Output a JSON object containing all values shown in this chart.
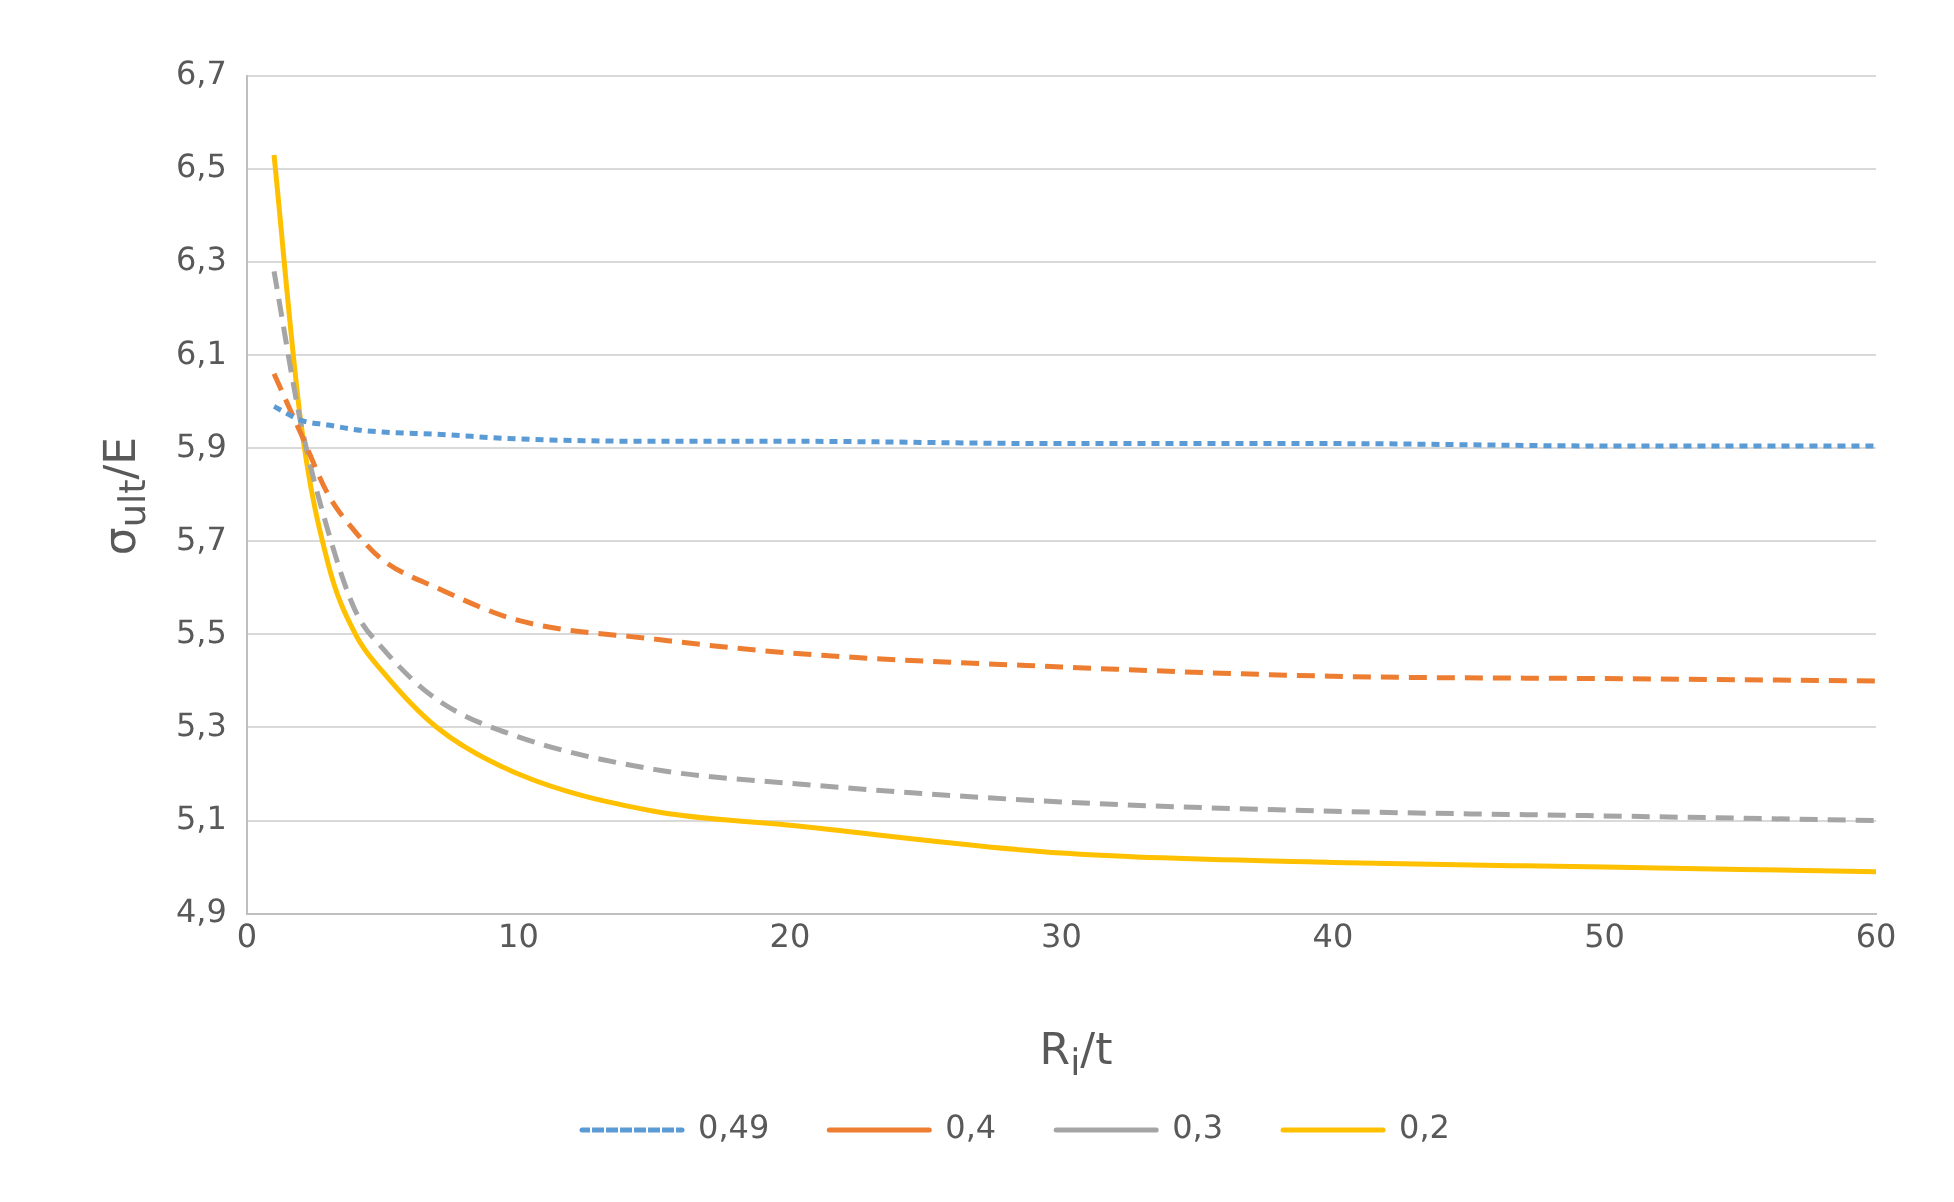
{
  "chart_data": {
    "type": "line",
    "xlabel": "R$_{i}$/t",
    "ylabel": "σ$_{ult}$/E",
    "x": [
      1,
      2,
      3,
      4,
      5,
      7,
      10,
      15,
      20,
      30,
      40,
      50,
      60
    ],
    "series": [
      {
        "name": "0,49",
        "color": "#5b9bd5",
        "line_style": "dotted",
        "values": [
          5.99,
          5.96,
          5.95,
          5.94,
          5.935,
          5.93,
          5.92,
          5.915,
          5.915,
          5.91,
          5.91,
          5.905,
          5.905
        ]
      },
      {
        "name": "0,4",
        "color": "#ed7d31",
        "line_style": "dashed",
        "values": [
          6.06,
          5.93,
          5.8,
          5.72,
          5.66,
          5.6,
          5.53,
          5.49,
          5.46,
          5.43,
          5.41,
          5.405,
          5.4
        ]
      },
      {
        "name": "0,3",
        "color": "#a5a5a5",
        "line_style": "dashed",
        "values": [
          6.28,
          5.95,
          5.72,
          5.55,
          5.47,
          5.36,
          5.28,
          5.21,
          5.18,
          5.14,
          5.12,
          5.11,
          5.1
        ]
      },
      {
        "name": "0,2",
        "color": "#ffc000",
        "line_style": "solid",
        "values": [
          6.53,
          5.95,
          5.65,
          5.5,
          5.42,
          5.3,
          5.2,
          5.12,
          5.09,
          5.03,
          5.01,
          5.0,
          4.99
        ]
      }
    ],
    "xlim": [
      0,
      60
    ],
    "xticks": [
      0,
      10,
      20,
      30,
      40,
      50,
      60
    ],
    "ylim": [
      4.9,
      6.7
    ],
    "yticks": [
      {
        "value": 4.9,
        "label": "4,9"
      },
      {
        "value": 5.1,
        "label": "5,1"
      },
      {
        "value": 5.3,
        "label": "5,3"
      },
      {
        "value": 5.5,
        "label": "5,5"
      },
      {
        "value": 5.7,
        "label": "5,7"
      },
      {
        "value": 5.9,
        "label": "5,9"
      },
      {
        "value": 6.1,
        "label": "6,1"
      },
      {
        "value": 6.3,
        "label": "6,3"
      },
      {
        "value": 6.5,
        "label": "6,5"
      },
      {
        "value": 6.7,
        "label": "6,7"
      }
    ],
    "grid": "y",
    "legend": "bottom",
    "marker": "none"
  }
}
